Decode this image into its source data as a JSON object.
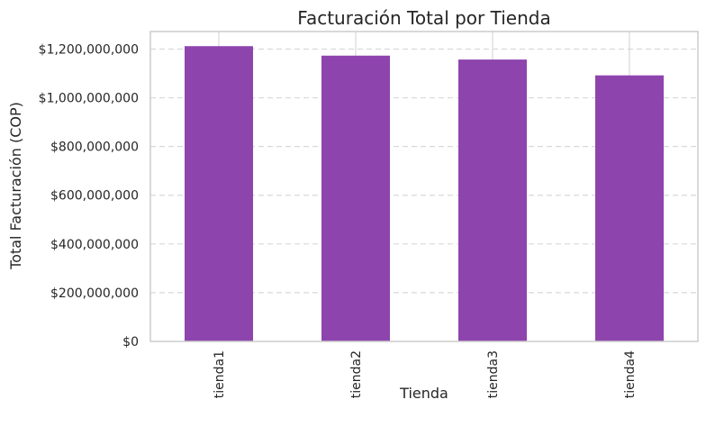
{
  "chart_data": {
    "type": "bar",
    "title": "Facturación Total por Tienda",
    "xlabel": "Tienda",
    "ylabel": "Total Facturación (COP)",
    "categories": [
      "tienda1",
      "tienda2",
      "tienda3",
      "tienda4"
    ],
    "values": [
      1212000000,
      1173000000,
      1157000000,
      1092000000
    ],
    "ylim": [
      0,
      1272000000
    ],
    "yticks": [
      0,
      200000000,
      400000000,
      600000000,
      800000000,
      1000000000,
      1200000000
    ],
    "ytick_labels": [
      "$0",
      "$200,000,000",
      "$400,000,000",
      "$600,000,000",
      "$800,000,000",
      "$1,000,000,000",
      "$1,200,000,000"
    ],
    "bar_color": "#8e44ad",
    "grid": true,
    "grid_style": "dashed"
  }
}
